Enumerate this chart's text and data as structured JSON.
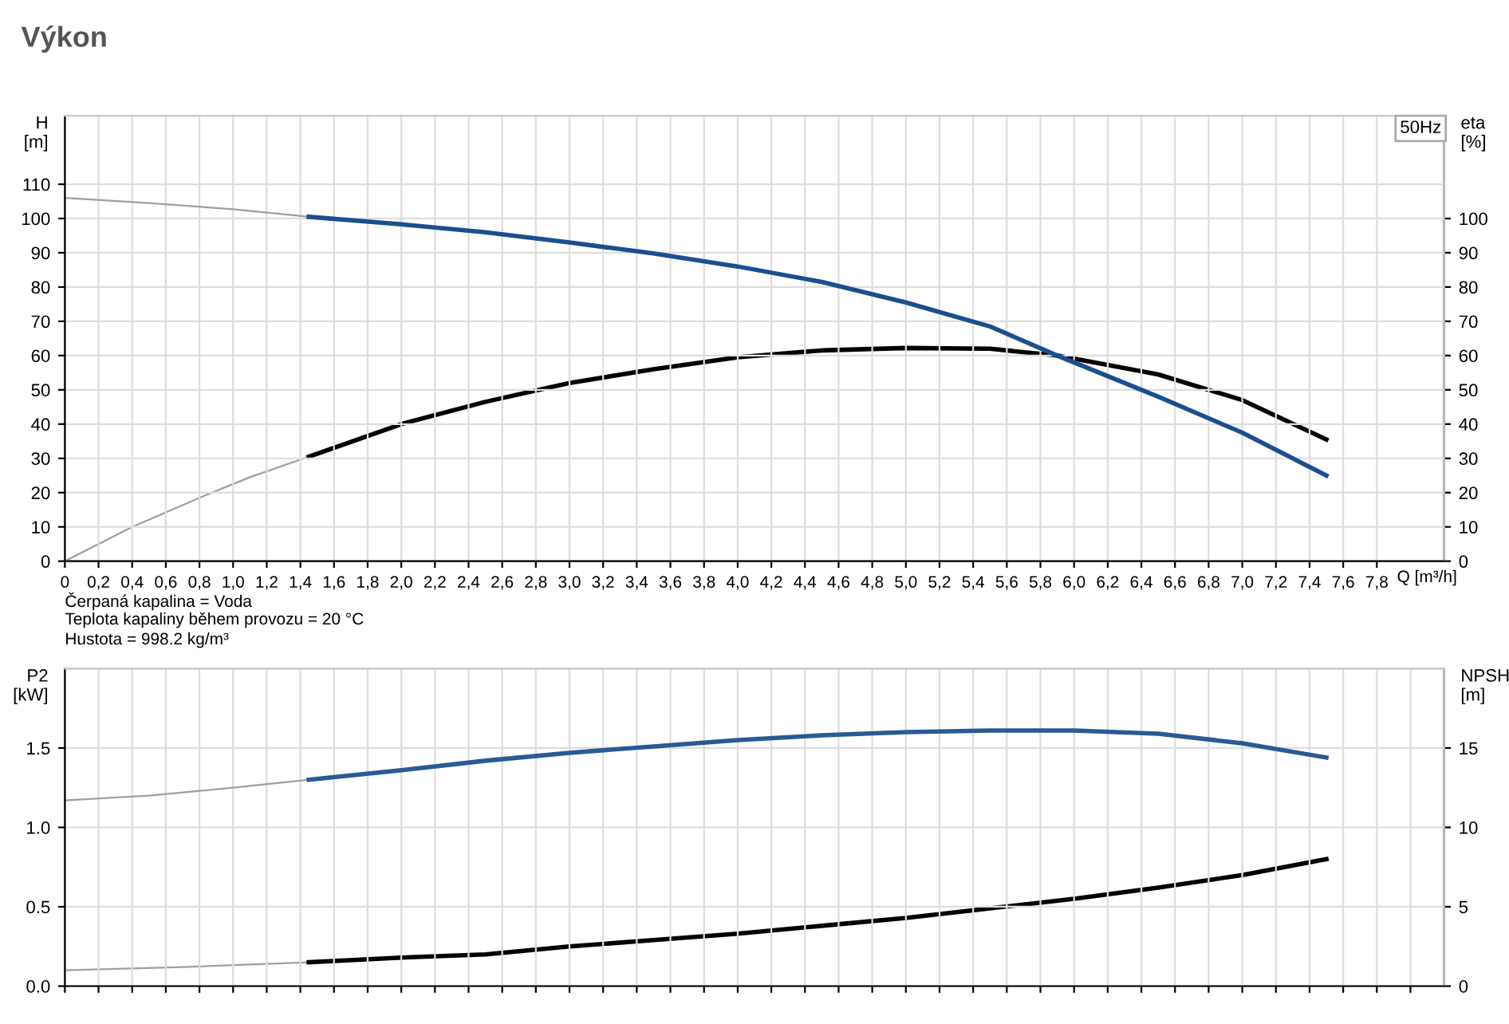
{
  "chart_data": [
    {
      "type": "line",
      "title": "Výkon",
      "xlabel": "Q [m³/h]",
      "ylabel": "H\n[m]",
      "y2label": "eta\n[%]",
      "xlim": [
        0,
        8.2
      ],
      "xticks": [
        0,
        {
          "value": 0.2,
          "label": "0,2"
        },
        {
          "value": 0.4,
          "label": "0,4"
        },
        {
          "value": 0.6,
          "label": "0,6"
        },
        {
          "value": 0.8,
          "label": "0,8"
        },
        {
          "value": 1.0,
          "label": "1,0"
        },
        {
          "value": 1.2,
          "label": "1,2"
        },
        {
          "value": 1.4,
          "label": "1,4"
        },
        {
          "value": 1.6,
          "label": "1,6"
        },
        {
          "value": 1.8,
          "label": "1,8"
        },
        {
          "value": 2.0,
          "label": "2,0"
        },
        {
          "value": 2.2,
          "label": "2,2"
        },
        {
          "value": 2.4,
          "label": "2,4"
        },
        {
          "value": 2.6,
          "label": "2,6"
        },
        {
          "value": 2.8,
          "label": "2,8"
        },
        {
          "value": 3.0,
          "label": "3,0"
        },
        {
          "value": 3.2,
          "label": "3,2"
        },
        {
          "value": 3.4,
          "label": "3,4"
        },
        {
          "value": 3.6,
          "label": "3,6"
        },
        {
          "value": 3.8,
          "label": "3,8"
        },
        {
          "value": 4.0,
          "label": "4,0"
        },
        {
          "value": 4.2,
          "label": "4,2"
        },
        {
          "value": 4.4,
          "label": "4,4"
        },
        {
          "value": 4.6,
          "label": "4,6"
        },
        {
          "value": 4.8,
          "label": "4,8"
        },
        {
          "value": 5.0,
          "label": "5,0"
        },
        {
          "value": 5.2,
          "label": "5,2"
        },
        {
          "value": 5.4,
          "label": "5,4"
        },
        {
          "value": 5.6,
          "label": "5,6"
        },
        {
          "value": 5.8,
          "label": "5,8"
        },
        {
          "value": 6.0,
          "label": "6,0"
        },
        {
          "value": 6.2,
          "label": "6,2"
        },
        {
          "value": 6.4,
          "label": "6,4"
        },
        {
          "value": 6.6,
          "label": "6,6"
        },
        {
          "value": 6.8,
          "label": "6,8"
        },
        {
          "value": 7.0,
          "label": "7,0"
        },
        {
          "value": 7.2,
          "label": "7,2"
        },
        {
          "value": 7.4,
          "label": "7,4"
        },
        {
          "value": 7.6,
          "label": "7,6"
        },
        {
          "value": 7.8,
          "label": "7,8"
        }
      ],
      "ylim": [
        0,
        130
      ],
      "yticks": [
        0,
        10,
        20,
        30,
        40,
        50,
        60,
        70,
        80,
        90,
        100,
        110
      ],
      "y2lim": [
        0,
        130
      ],
      "y2ticks": [
        0,
        10,
        20,
        30,
        40,
        50,
        60,
        70,
        80,
        90,
        100
      ],
      "grid": true,
      "series": [
        {
          "color": "#a0a0a0",
          "x": [
            0,
            0.5,
            1.0,
            1.45
          ],
          "values": [
            106,
            104.5,
            102.7,
            100.5
          ]
        },
        {
          "color": "#1a4f8f",
          "x": [
            1.45,
            2.0,
            2.5,
            3.0,
            3.5,
            4.0,
            4.5,
            5.0,
            5.5,
            5.9,
            6.5,
            7.0,
            7.5
          ],
          "values": [
            100.5,
            98.3,
            96,
            93,
            89.8,
            86,
            81.5,
            75.5,
            68.5,
            60,
            48,
            37.5,
            25
          ]
        },
        {
          "color": "#a0a0a0",
          "axis": "y2",
          "x": [
            0,
            0.4,
            0.8,
            1.1,
            1.45
          ],
          "values": [
            0,
            10,
            18.5,
            24.5,
            30.5
          ]
        },
        {
          "color": "#000000",
          "axis": "y2",
          "x": [
            1.45,
            2.0,
            2.5,
            3.0,
            3.5,
            4.0,
            4.5,
            5.0,
            5.5,
            5.9,
            6.5,
            7.0,
            7.5
          ],
          "values": [
            30.5,
            40,
            46.5,
            52,
            56,
            59.5,
            61.5,
            62.2,
            62,
            60,
            54.5,
            47,
            35.5
          ]
        }
      ],
      "annotations": [
        "50Hz",
        "Čerpaná kapalina = Voda",
        "Teplota kapaliny během provozu = 20 °C",
        "Hustota = 998.2 kg/m³"
      ]
    },
    {
      "type": "line",
      "ylabel": "P2\n[kW]",
      "y2label": "NPSH\n[m]",
      "xlim": [
        0,
        8.2
      ],
      "tick_labels": "y",
      "ylim": [
        0,
        2
      ],
      "yticks": [
        {
          "value": 0,
          "label": "0.0"
        },
        {
          "value": 0.5,
          "label": "0.5"
        },
        {
          "value": 1.0,
          "label": "1.0"
        },
        {
          "value": 1.5,
          "label": "1.5"
        }
      ],
      "y2lim": [
        0,
        20
      ],
      "y2ticks": [
        0,
        5,
        10,
        15
      ],
      "grid": true,
      "series": [
        {
          "color": "#a0a0a0",
          "x": [
            0,
            0.5,
            1.0,
            1.45
          ],
          "values": [
            1.17,
            1.2,
            1.25,
            1.3
          ]
        },
        {
          "color": "#2a5a94",
          "x": [
            1.45,
            2.0,
            2.5,
            3.0,
            3.5,
            4.0,
            4.5,
            5.0,
            5.5,
            6.0,
            6.5,
            7.0,
            7.5
          ],
          "values": [
            1.3,
            1.36,
            1.42,
            1.47,
            1.51,
            1.55,
            1.58,
            1.6,
            1.61,
            1.61,
            1.59,
            1.53,
            1.44
          ]
        },
        {
          "color": "#a0a0a0",
          "axis": "y2",
          "x": [
            0,
            0.7,
            1.45
          ],
          "values": [
            1,
            1.2,
            1.5
          ]
        },
        {
          "color": "#000000",
          "axis": "y2",
          "x": [
            1.45,
            2.0,
            2.5,
            3.0,
            3.5,
            4.0,
            4.5,
            5.0,
            5.5,
            6.0,
            6.5,
            7.0,
            7.5
          ],
          "values": [
            1.5,
            1.8,
            2,
            2.5,
            2.9,
            3.3,
            3.8,
            4.3,
            4.9,
            5.5,
            6.2,
            7,
            8
          ]
        }
      ]
    }
  ]
}
